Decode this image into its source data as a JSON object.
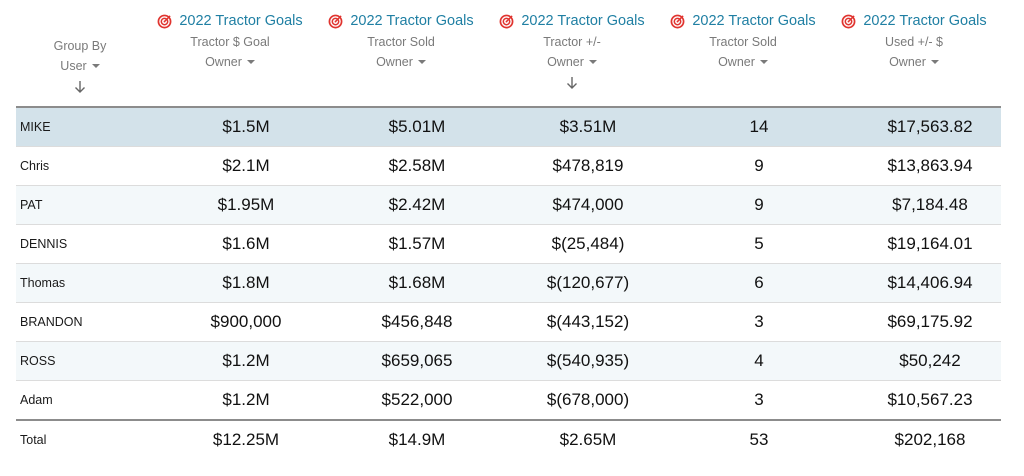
{
  "group_by": {
    "label_line1": "Group By",
    "label_line2": "User"
  },
  "columns": [
    {
      "goal_link": "2022 Tractor Goals",
      "metric": "Tractor $ Goal",
      "agg": "Owner"
    },
    {
      "goal_link": "2022 Tractor Goals",
      "metric": "Tractor Sold",
      "agg": "Owner"
    },
    {
      "goal_link": "2022 Tractor Goals",
      "metric": "Tractor +/-",
      "agg": "Owner"
    },
    {
      "goal_link": "2022 Tractor Goals",
      "metric": "Tractor Sold",
      "agg": "Owner"
    },
    {
      "goal_link": "2022 Tractor Goals",
      "metric": "Used +/- $",
      "agg": "Owner"
    }
  ],
  "rows": [
    {
      "name": "MIKE",
      "values": [
        "$1.5M",
        "$5.01M",
        "$3.51M",
        "14",
        "$17,563.82"
      ]
    },
    {
      "name": "Chris",
      "values": [
        "$2.1M",
        "$2.58M",
        "$478,819",
        "9",
        "$13,863.94"
      ]
    },
    {
      "name": "PAT",
      "values": [
        "$1.95M",
        "$2.42M",
        "$474,000",
        "9",
        "$7,184.48"
      ]
    },
    {
      "name": "DENNIS",
      "values": [
        "$1.6M",
        "$1.57M",
        "$(25,484)",
        "5",
        "$19,164.01"
      ]
    },
    {
      "name": "Thomas",
      "values": [
        "$1.8M",
        "$1.68M",
        "$(120,677)",
        "6",
        "$14,406.94"
      ]
    },
    {
      "name": "BRANDON",
      "values": [
        "$900,000",
        "$456,848",
        "$(443,152)",
        "3",
        "$69,175.92"
      ]
    },
    {
      "name": "ROSS",
      "values": [
        "$1.2M",
        "$659,065",
        "$(540,935)",
        "4",
        "$50,242"
      ]
    },
    {
      "name": "Adam",
      "values": [
        "$1.2M",
        "$522,000",
        "$(678,000)",
        "3",
        "$10,567.23"
      ]
    }
  ],
  "total": {
    "name": "Total",
    "values": [
      "$12.25M",
      "$14.9M",
      "$2.65M",
      "53",
      "$202,168"
    ]
  },
  "colors": {
    "link": "#1f7fa3",
    "target_icon": "#e0342f",
    "highlight_row": "#d3e2ea"
  },
  "icons": {
    "goal": "target-icon",
    "sort": "arrow-down-icon",
    "dropdown": "caret-down-icon"
  }
}
